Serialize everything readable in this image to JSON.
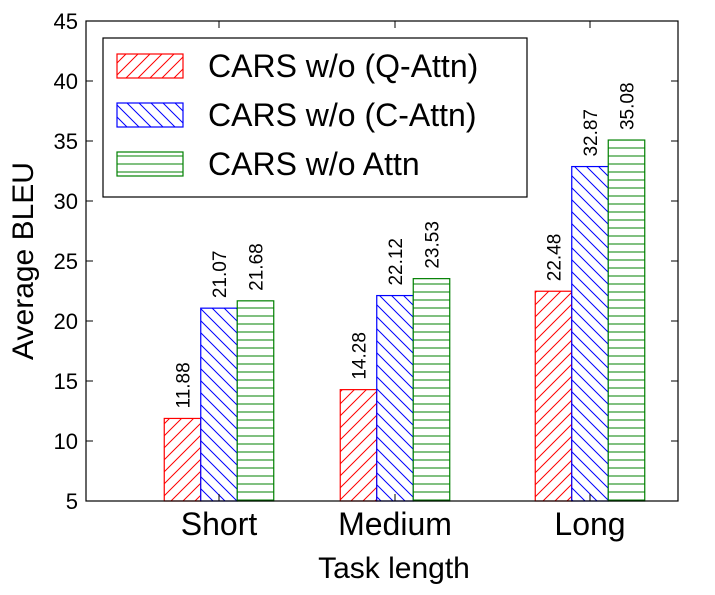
{
  "chart_data": {
    "type": "bar",
    "title": "",
    "xlabel": "Task length",
    "ylabel": "Average BLEU",
    "ylim": [
      5,
      45
    ],
    "yticks": [
      5,
      10,
      15,
      20,
      25,
      30,
      35,
      40,
      45
    ],
    "categories": [
      "Short",
      "Medium",
      "Long"
    ],
    "grid": false,
    "legend_position": "top-left",
    "series": [
      {
        "name": "CARS w/o (Q-Attn)",
        "color": "#ff0000",
        "hatch": "diagonal-forward",
        "values": [
          11.88,
          14.28,
          22.48
        ],
        "labels": [
          "11.88",
          "14.28",
          "22.48"
        ]
      },
      {
        "name": "CARS w/o (C-Attn)",
        "color": "#0000ff",
        "hatch": "diagonal-back",
        "values": [
          21.07,
          22.12,
          32.87
        ],
        "labels": [
          "21.07",
          "22.12",
          "32.87"
        ]
      },
      {
        "name": "CARS w/o Attn",
        "color": "#008000",
        "hatch": "horizontal",
        "values": [
          21.68,
          23.53,
          35.08
        ],
        "labels": [
          "21.68",
          "23.53",
          "35.08"
        ]
      }
    ]
  }
}
